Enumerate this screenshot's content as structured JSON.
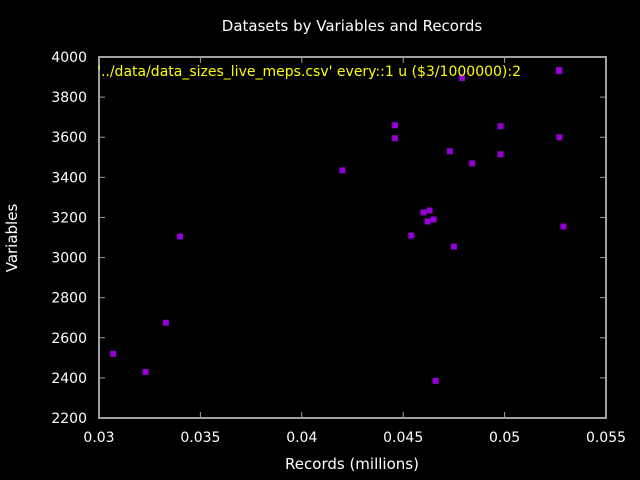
{
  "chart_data": {
    "type": "scatter",
    "title": "Datasets by Variables and Records",
    "xlabel": "Records (millions)",
    "ylabel": "Variables",
    "xlim": [
      0.03,
      0.055
    ],
    "ylim": [
      2200,
      4000
    ],
    "x_ticks": [
      "0.03",
      "0.035",
      "0.04",
      "0.045",
      "0.05",
      "0.055"
    ],
    "y_ticks": [
      "2200",
      "2400",
      "2600",
      "2800",
      "3000",
      "3200",
      "3400",
      "3600",
      "3800",
      "4000"
    ],
    "grid": false,
    "legend_position": "top-right",
    "series": [
      {
        "name": "'../data/data_sizes_live_meps.csv' every::1 u ($3/1000000):2",
        "color": "#9400d3",
        "points": [
          {
            "x": 0.0307,
            "y": 2520
          },
          {
            "x": 0.0323,
            "y": 2430
          },
          {
            "x": 0.0333,
            "y": 2675
          },
          {
            "x": 0.034,
            "y": 3105
          },
          {
            "x": 0.042,
            "y": 3435
          },
          {
            "x": 0.0446,
            "y": 3660
          },
          {
            "x": 0.0446,
            "y": 3595
          },
          {
            "x": 0.0454,
            "y": 3110
          },
          {
            "x": 0.046,
            "y": 3225
          },
          {
            "x": 0.0462,
            "y": 3180
          },
          {
            "x": 0.0463,
            "y": 3235
          },
          {
            "x": 0.0465,
            "y": 3190
          },
          {
            "x": 0.0466,
            "y": 2385
          },
          {
            "x": 0.0473,
            "y": 3530
          },
          {
            "x": 0.0475,
            "y": 3055
          },
          {
            "x": 0.0479,
            "y": 3895
          },
          {
            "x": 0.0484,
            "y": 3470
          },
          {
            "x": 0.0498,
            "y": 3655
          },
          {
            "x": 0.0498,
            "y": 3515
          },
          {
            "x": 0.0527,
            "y": 3600
          },
          {
            "x": 0.0527,
            "y": 3930
          },
          {
            "x": 0.0529,
            "y": 3155
          }
        ]
      }
    ]
  }
}
